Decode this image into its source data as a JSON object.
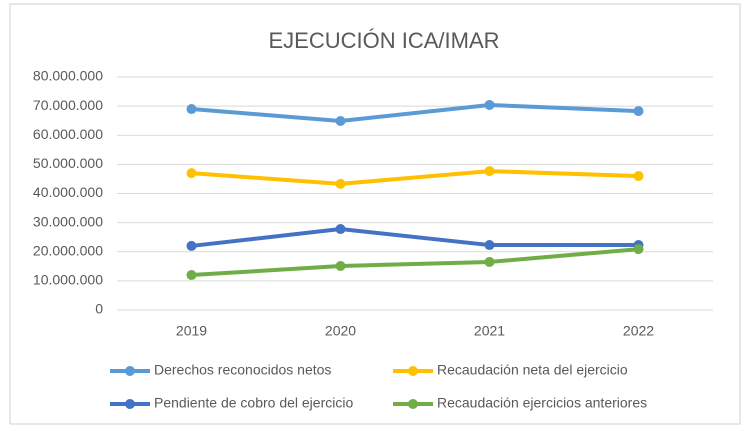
{
  "chart_data": {
    "type": "line",
    "title": "EJECUCIÓN ICA/IMAR",
    "categories": [
      "2019",
      "2020",
      "2021",
      "2022"
    ],
    "series": [
      {
        "name": "Derechos reconocidos netos",
        "color": "#5b9bd5",
        "values": [
          69000000,
          64900000,
          70400000,
          68300000
        ]
      },
      {
        "name": "Recaudación neta del ejercicio",
        "color": "#ffc000",
        "values": [
          47000000,
          43300000,
          47700000,
          46000000
        ]
      },
      {
        "name": "Pendiente de cobro del ejercicio",
        "color": "#4472c4",
        "values": [
          22000000,
          27800000,
          22300000,
          22300000
        ]
      },
      {
        "name": "Recaudación ejercicios anteriores",
        "color": "#70ad47",
        "values": [
          12000000,
          15100000,
          16500000,
          20900000
        ]
      }
    ],
    "ylim": [
      0,
      80000000
    ],
    "yticks": [
      0,
      {
        "value": 10000000,
        "label": "10.000.000"
      },
      {
        "value": 20000000,
        "label": "20.000.000"
      },
      {
        "value": 30000000,
        "label": "30.000.000"
      },
      {
        "value": 40000000,
        "label": "40.000.000"
      },
      {
        "value": 50000000,
        "label": "50.000.000"
      },
      {
        "value": 60000000,
        "label": "60.000.000"
      },
      {
        "value": 70000000,
        "label": "70.000.000"
      },
      {
        "value": 80000000,
        "label": "80.000.000"
      }
    ],
    "grid": true
  }
}
